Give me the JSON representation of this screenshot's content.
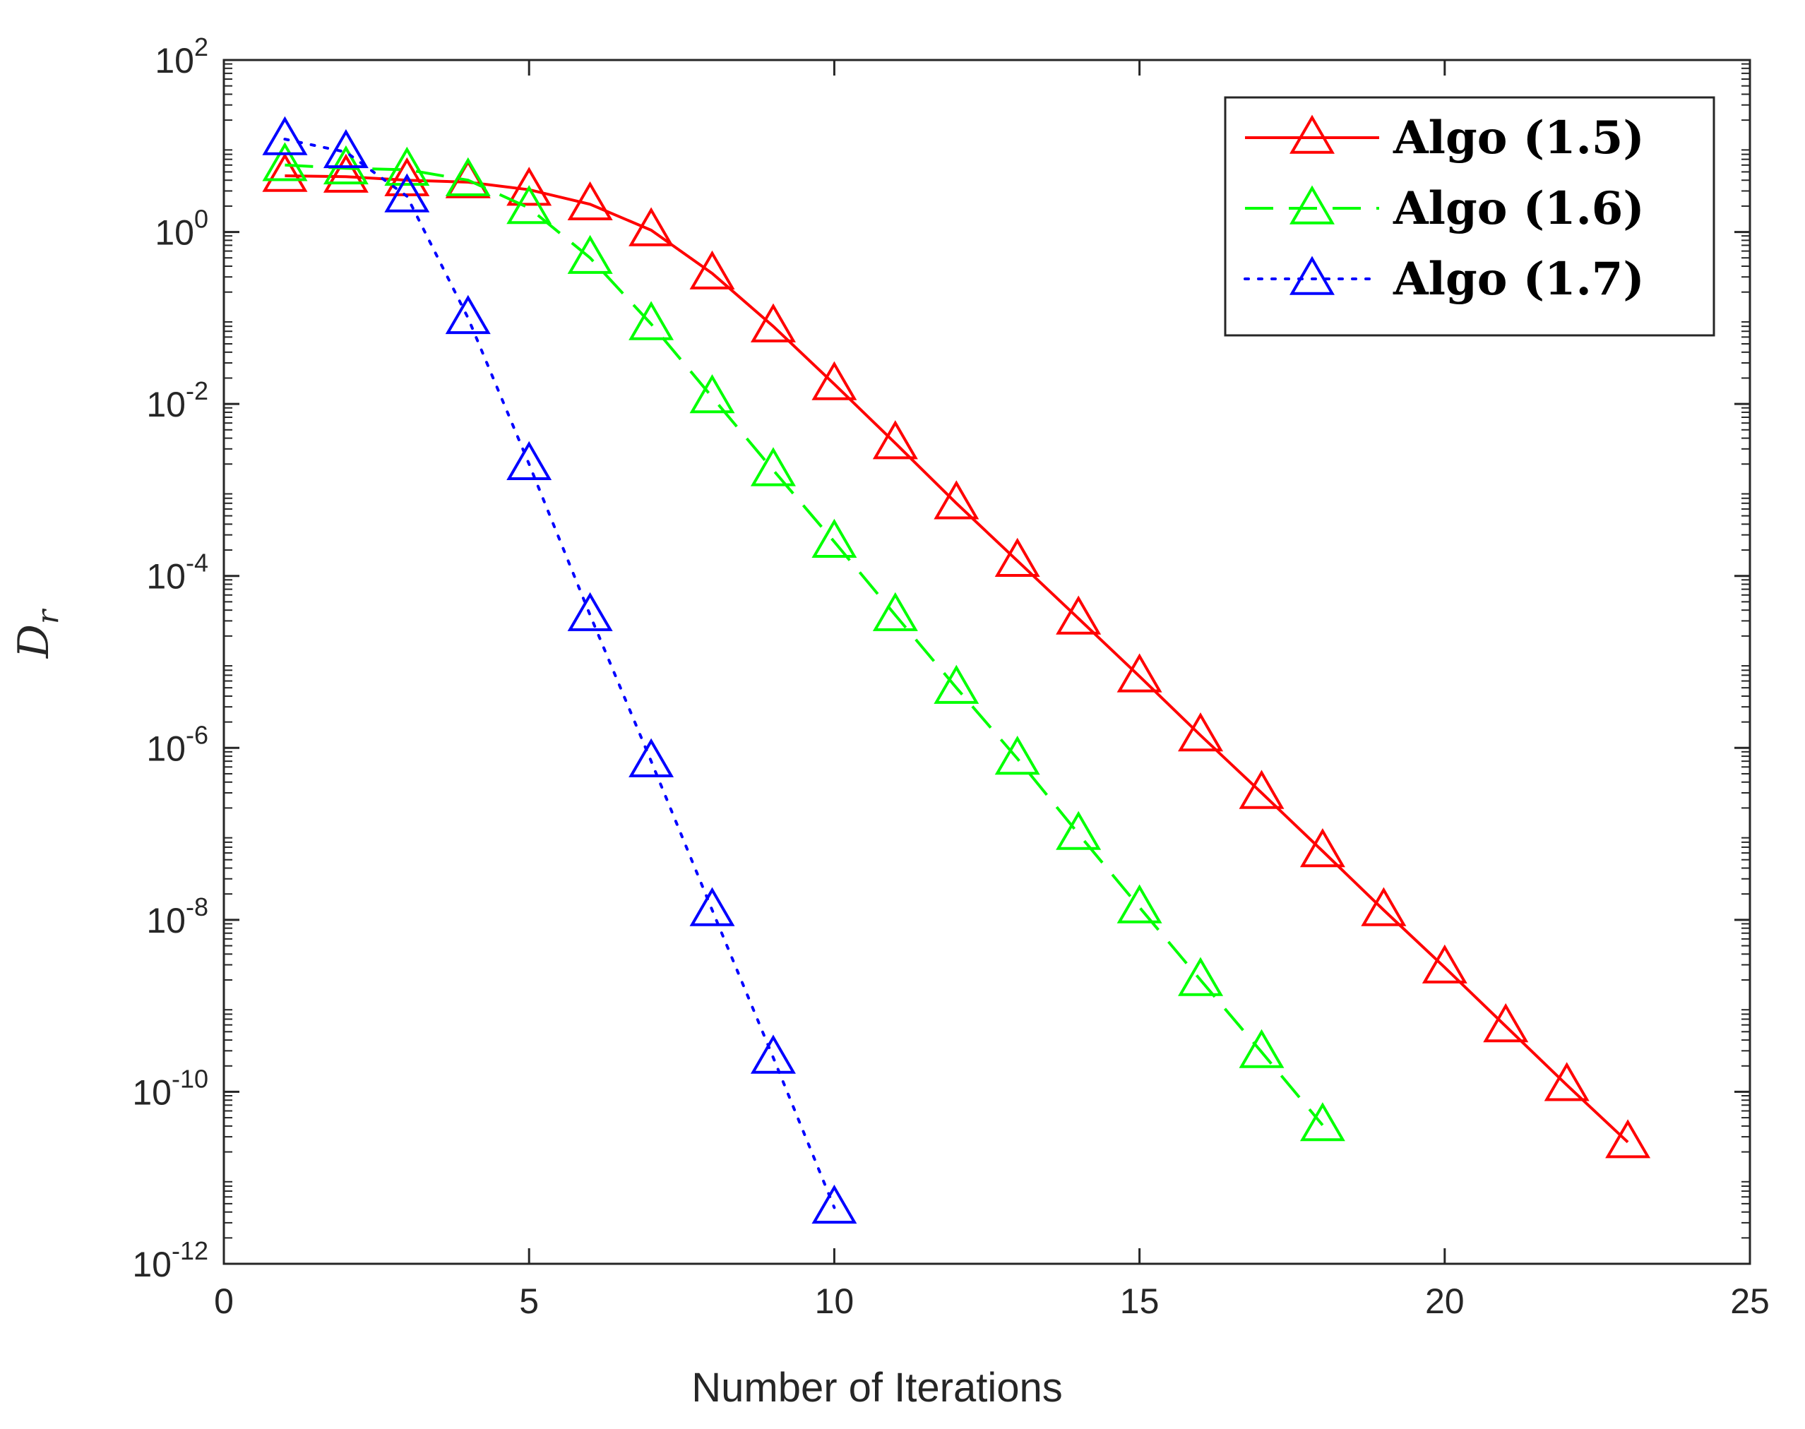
{
  "chart_data": {
    "type": "line",
    "title": "",
    "xlabel": "Number of Iterations",
    "ylabel": {
      "base": "D",
      "sub": "r"
    },
    "xlim": [
      0,
      25
    ],
    "ylim": [
      1e-12,
      100
    ],
    "yscale": "log",
    "grid": false,
    "legend_position": "top-right",
    "xticks": [
      {
        "value": 0,
        "label": "0"
      },
      {
        "value": 5,
        "label": "5"
      },
      {
        "value": 10,
        "label": "10"
      },
      {
        "value": 15,
        "label": "15"
      },
      {
        "value": 20,
        "label": "20"
      },
      {
        "value": 25,
        "label": "25"
      }
    ],
    "yticks": [
      {
        "exp": 2,
        "base": "10",
        "sup": "2"
      },
      {
        "exp": 0,
        "base": "10",
        "sup": "0"
      },
      {
        "exp": -2,
        "base": "10",
        "sup": "-2"
      },
      {
        "exp": -4,
        "base": "10",
        "sup": "-4"
      },
      {
        "exp": -6,
        "base": "10",
        "sup": "-6"
      },
      {
        "exp": -8,
        "base": "10",
        "sup": "-8"
      },
      {
        "exp": -10,
        "base": "10",
        "sup": "-10"
      },
      {
        "exp": -12,
        "base": "10",
        "sup": "-12"
      }
    ],
    "series": [
      {
        "name": "Algo (1.5)",
        "color": "#ff0000",
        "line_style": "solid",
        "marker": "triangle",
        "x": [
          1,
          2,
          3,
          4,
          5,
          6,
          7,
          8,
          9,
          10,
          11,
          12,
          13,
          14,
          15,
          16,
          17,
          18,
          19,
          20,
          21,
          22,
          23
        ],
        "y": [
          4.5,
          4.4,
          4.0,
          3.8,
          3.1,
          2.1,
          1.05,
          0.33,
          0.08,
          0.017,
          0.0035,
          0.0007,
          0.00015,
          3.2e-05,
          6.8e-06,
          1.4e-06,
          3e-07,
          6.3e-08,
          1.3e-08,
          2.8e-09,
          5.8e-10,
          1.2e-10,
          2.6e-11
        ]
      },
      {
        "name": "Algo (1.6)",
        "color": "#00ff00",
        "line_style": "dashed",
        "marker": "triangle",
        "x": [
          1,
          2,
          3,
          4,
          5,
          6,
          7,
          8,
          9,
          10,
          11,
          12,
          13,
          14,
          15,
          16,
          17,
          18
        ],
        "y": [
          6.0,
          5.5,
          5.3,
          4.0,
          1.9,
          0.5,
          0.085,
          0.012,
          0.0017,
          0.00025,
          3.5e-05,
          5e-06,
          7.5e-07,
          1e-07,
          1.4e-08,
          2e-09,
          2.9e-10,
          4.1e-11
        ]
      },
      {
        "name": "Algo (1.7)",
        "color": "#0000ff",
        "line_style": "dotted",
        "marker": "triangle",
        "x": [
          1,
          2,
          3,
          4,
          5,
          6,
          7,
          8,
          9,
          10
        ],
        "y": [
          12.0,
          8.5,
          2.6,
          0.1,
          0.002,
          3.5e-05,
          7e-07,
          1.3e-08,
          2.5e-10,
          4.5e-12
        ]
      }
    ]
  }
}
